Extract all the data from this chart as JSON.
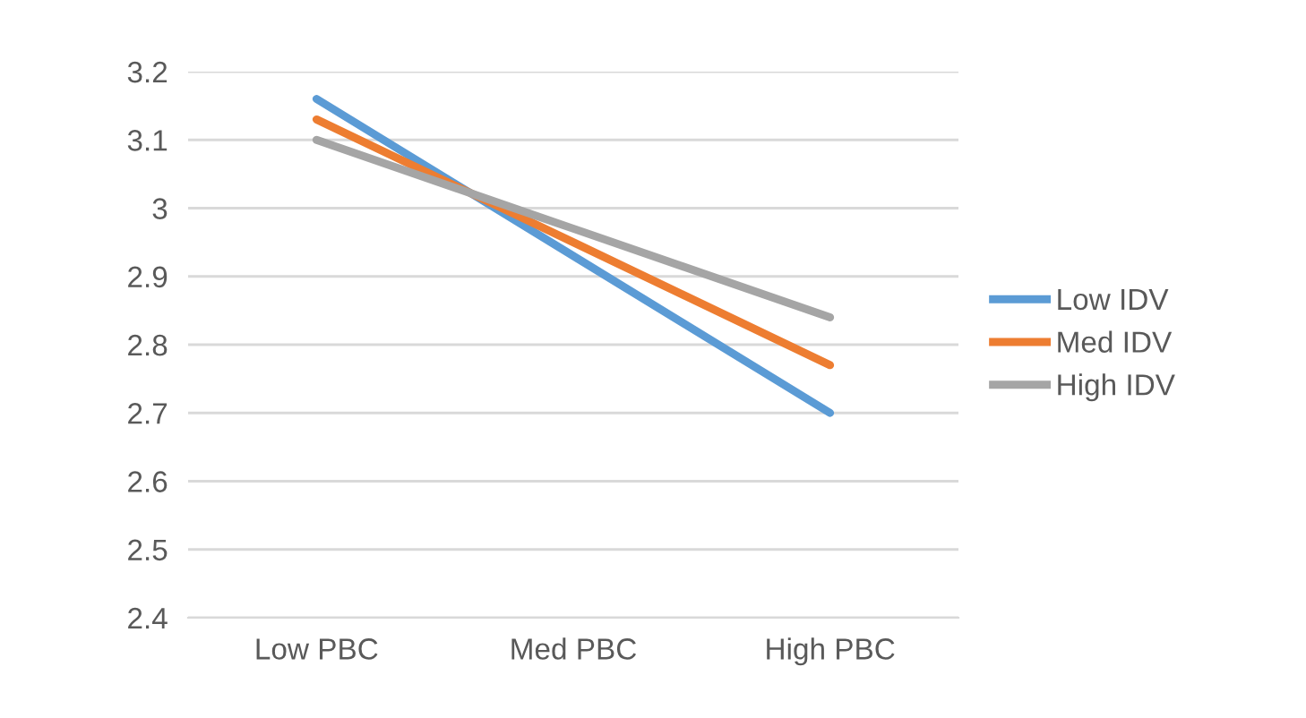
{
  "chart_data": {
    "type": "line",
    "categories": [
      "Low PBC",
      "Med PBC",
      "High PBC"
    ],
    "series": [
      {
        "name": "Low IDV",
        "color": "#5b9bd5",
        "values": [
          3.16,
          2.93,
          2.7
        ]
      },
      {
        "name": "Med IDV",
        "color": "#ed7d31",
        "values": [
          3.13,
          2.95,
          2.77
        ]
      },
      {
        "name": "High IDV",
        "color": "#a5a5a5",
        "values": [
          3.1,
          2.97,
          2.84
        ]
      }
    ],
    "ylim": [
      2.4,
      3.2
    ],
    "yticks": [
      2.4,
      2.5,
      2.6,
      2.7,
      2.8,
      2.9,
      {
        "value": 3.0,
        "label": "3"
      },
      3.1,
      3.2
    ],
    "grid": "y",
    "legend": "right",
    "marker": "none",
    "line_style": "solid"
  }
}
